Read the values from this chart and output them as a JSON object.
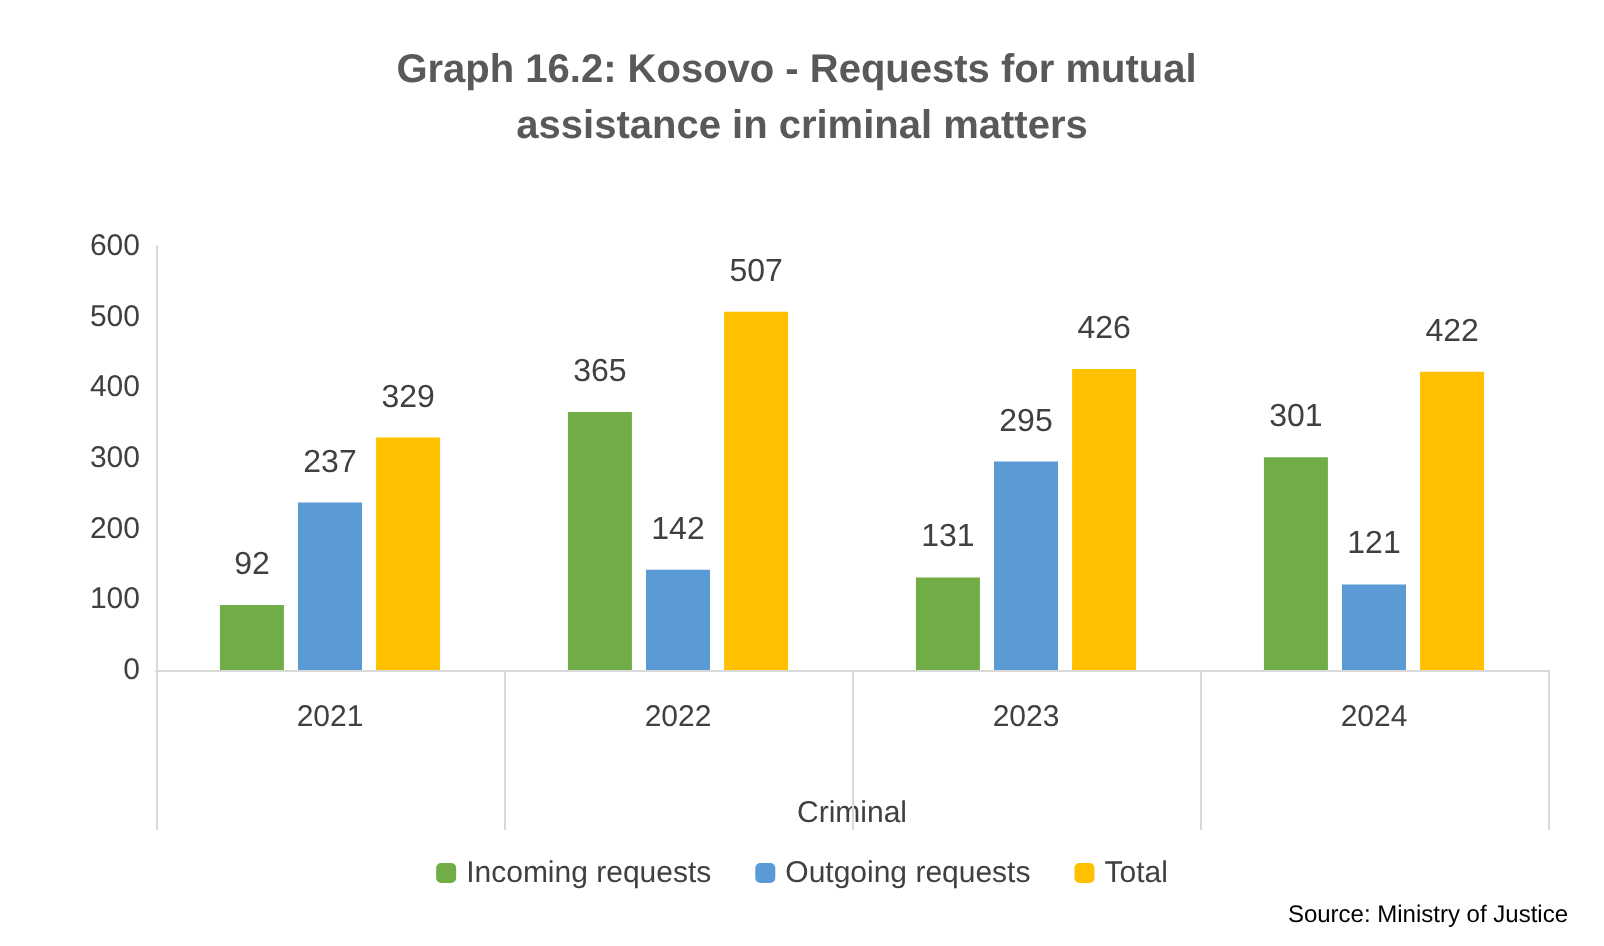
{
  "chart_data": {
    "type": "bar",
    "title": "Graph 16.2: Kosovo - Requests for mutual assistance in criminal matters",
    "xlabel": "Criminal",
    "categories": [
      "2021",
      "2022",
      "2023",
      "2024"
    ],
    "series": [
      {
        "name": "Incoming requests",
        "color": "#70ad47",
        "values": [
          92,
          365,
          131,
          301
        ]
      },
      {
        "name": "Outgoing requests",
        "color": "#5b9bd5",
        "values": [
          237,
          142,
          295,
          121
        ]
      },
      {
        "name": "Total",
        "color": "#ffc000",
        "values": [
          329,
          507,
          426,
          422
        ]
      }
    ],
    "ylim": [
      0,
      600
    ],
    "yticks": [
      0,
      100,
      200,
      300,
      400,
      500,
      600
    ],
    "grid": false,
    "legend": "bottom",
    "data_labels": true,
    "annotations": [
      "Source: Ministry of Justice"
    ]
  }
}
